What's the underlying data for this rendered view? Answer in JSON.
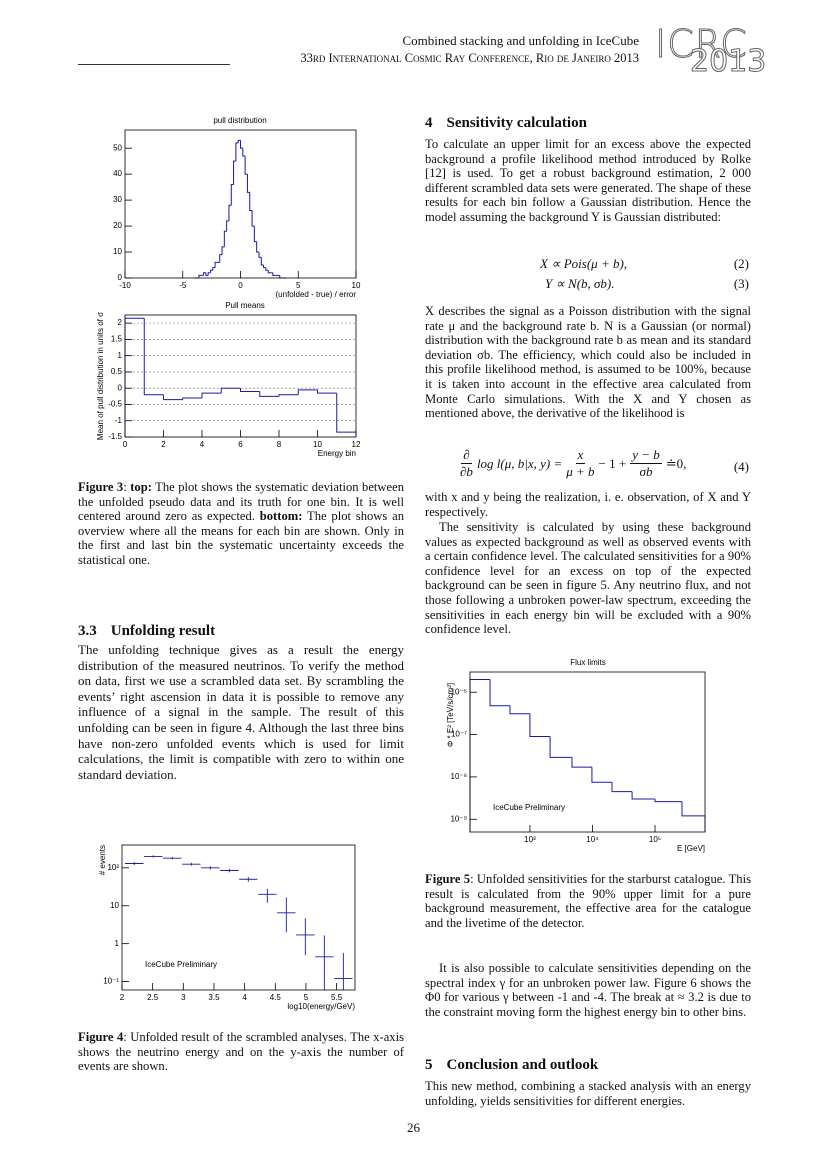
{
  "header": {
    "title": "Combined stacking and unfolding in IceCube",
    "conference": "33rd International Cosmic Ray Conference, Rio de Janeiro 2013",
    "logo_top": "ICRC",
    "logo_bottom": "2013"
  },
  "figures": {
    "pull": {
      "type": "histogram",
      "title": "pull distribution",
      "xlabel": "(unfolded - true) / error",
      "color": "#1a1aa8",
      "bins": [
        -4,
        -3.8,
        -3.6,
        -3.4,
        -3.2,
        -3,
        -2.8,
        -2.6,
        -2.4,
        -2.2,
        -2,
        -1.8,
        -1.6,
        -1.4,
        -1.2,
        -1,
        -0.8,
        -0.6,
        -0.4,
        -0.2,
        0,
        0.2,
        0.4,
        0.6,
        0.8,
        1,
        1.2,
        1.4,
        1.6,
        1.8,
        2,
        2.2,
        2.4,
        2.6,
        2.8,
        3,
        3.2,
        3.4,
        3.6,
        3.8,
        4
      ],
      "values": [
        0,
        0,
        1,
        1,
        2,
        1,
        2,
        3,
        4,
        6,
        6,
        9,
        12,
        18,
        22,
        28,
        36,
        45,
        52,
        53,
        50,
        47,
        40,
        33,
        26,
        20,
        14,
        10,
        8,
        5,
        4,
        3,
        2,
        2,
        1,
        1,
        1,
        0,
        0,
        0
      ],
      "xlim": [
        -10,
        10
      ],
      "xticks": [
        -10,
        -5,
        0,
        5,
        10
      ],
      "ylim": [
        0,
        57
      ],
      "yticks": [
        0,
        10,
        20,
        30,
        40,
        50
      ]
    },
    "means": {
      "type": "histogram",
      "title": "Pull means",
      "xlabel": "Energy bin",
      "ylabel": "Mean of pull distribution in units of σ",
      "color": "#1a1aa8",
      "grid": true,
      "bins": [
        0,
        1,
        2,
        3,
        4,
        5,
        6,
        7,
        8,
        9,
        10,
        11,
        12
      ],
      "values": [
        2.15,
        -0.2,
        -0.35,
        -0.3,
        -0.15,
        0,
        -0.1,
        -0.25,
        -0.2,
        -0.05,
        -0.15,
        -1.35
      ],
      "xlim": [
        0,
        12
      ],
      "xticks": [
        0,
        2,
        4,
        6,
        8,
        10,
        12
      ],
      "ylim": [
        -1.5,
        2.25
      ],
      "yticks": [
        -1.5,
        -1,
        -0.5,
        0,
        0.5,
        1,
        1.5,
        2
      ]
    },
    "unfolded": {
      "type": "errorbar",
      "xlabel": "log10(energy/GeV)",
      "ylabel": "# events",
      "annotation": "IceCube Preliminary",
      "color": "#1a1aa8",
      "ylog": true,
      "x": [
        2.2,
        2.51,
        2.82,
        3.13,
        3.44,
        3.75,
        4.06,
        4.37,
        4.68,
        4.99,
        5.3,
        5.61
      ],
      "xerr": 0.15,
      "values": [
        130,
        200,
        180,
        125,
        100,
        85,
        50,
        20,
        6.5,
        1.7,
        0.45,
        0.12
      ],
      "err_low": [
        12,
        14,
        13,
        11,
        10,
        9,
        7,
        8,
        4.5,
        1.2,
        0.4,
        0.12
      ],
      "err_high": [
        12,
        14,
        13,
        11,
        10,
        9,
        7,
        8,
        10,
        3,
        1.2,
        0.45
      ],
      "xlim": [
        2,
        5.8
      ],
      "xticks": [
        2,
        2.5,
        3,
        3.5,
        4,
        4.5,
        5,
        5.5
      ],
      "ylim": [
        0.06,
        400
      ],
      "yticks": [
        {
          "value": 0.1,
          "label": "10⁻¹"
        },
        {
          "value": 1,
          "label": "1"
        },
        {
          "value": 10,
          "label": "10"
        },
        {
          "value": 100,
          "label": "10²"
        }
      ]
    },
    "flux": {
      "type": "histogram",
      "title": "Flux limits",
      "xlabel": "E [GeV]",
      "ylabel": "Φ * E² [TeV/s/cm²]",
      "annotation": "IceCube Preliminary",
      "color": "#1a1aa8",
      "xlog": true,
      "ylog": true,
      "bins": [
        110,
        230,
        480,
        1000,
        2100,
        4700,
        9800,
        20500,
        43000,
        100000,
        270000,
        630000
      ],
      "values": [
        2e-06,
        4.8e-07,
        3.1e-07,
        9e-08,
        2.9e-08,
        1.7e-08,
        7.5e-09,
        4.5e-09,
        3e-09,
        2.6e-09,
        1.2e-09
      ],
      "xlim": [
        110,
        630000
      ],
      "xticks": [
        {
          "value": 1000,
          "label": "10³"
        },
        {
          "value": 10000,
          "label": "10⁴"
        },
        {
          "value": 100000,
          "label": "10⁵"
        }
      ],
      "ylim": [
        5e-10,
        3e-06
      ],
      "yticks": [
        {
          "value": 1e-09,
          "label": "10⁻⁹"
        },
        {
          "value": 1e-08,
          "label": "10⁻⁸"
        },
        {
          "value": 1e-07,
          "label": "10⁻⁷"
        },
        {
          "value": 1e-06,
          "label": "10⁻⁶"
        }
      ]
    }
  },
  "left": {
    "caption3": [
      "Figure 3",
      ": ",
      "top:",
      " The plot shows the systematic deviation between the unfolded pseudo data and its truth for one bin. It is well centered around zero as expected. ",
      "bottom:",
      " The plot shows an overview where all the means for each bin are shown. Only in the first and last bin the systematic uncertainty exceeds the statistical one."
    ],
    "section": {
      "number": "3.3",
      "title": "Unfolding result"
    },
    "paragraph": "The unfolding technique gives as a result the energy distribution of the measured neutrinos. To verify the method on data, first we use a scrambled data set. By scrambling the events’ right ascension in data it is possible to remove any influence of a signal in the sample. The result of this unfolding can be seen in figure 4. Although the last three bins have non-zero unfolded events which is used for limit calculations, the limit is compatible with zero to within one standard deviation.",
    "caption4": [
      "Figure 4",
      ": Unfolded result of the scrambled analyses. The x-axis shows the neutrino energy and on the y-axis the number of events are shown."
    ]
  },
  "right": {
    "section4": {
      "number": "4",
      "title": "Sensitivity calculation"
    },
    "p1": "To calculate an upper limit for an excess above the expected background a profile likelihood method introduced by Rolke [12] is used. To get a robust background estimation, 2 000 different scrambled data sets were generated. The shape of these results for each bin follow a Gaussian distribution. Hence the model assuming the background Y is Gaussian distributed:",
    "eq2": {
      "text": "X ∝ Pois(μ + b),",
      "number": "(2)"
    },
    "eq3": {
      "text": "Y ∝ N(b, σb).",
      "number": "(3)"
    },
    "p2": "X describes the signal as a Poisson distribution with the signal rate μ and the background rate b. N is a Gaussian (or normal) distribution with the background rate b as mean and its standard deviation σb. The efficiency, which could also be included in this profile likelihood method, is assumed to be 100%, because it is taken into account in the effective area calculated from Monte Carlo simulations. With the X and Y chosen as mentioned above, the derivative of the likelihood is",
    "eq4": {
      "d_num": "∂",
      "d_den": "∂b",
      "lhs": "log l(μ, b|x, y) =",
      "f1_num": "x",
      "f1_den": "μ + b",
      "mid": "− 1 +",
      "f2_num": "y − b",
      "f2_den": "σb",
      "end": "≐0,",
      "number": "(4)"
    },
    "p3": "with x and y being the realization, i. e. observation, of X and Y respectively.",
    "p4": "The sensitivity is calculated by using these background values as expected background as well as observed events with a certain confidence level. The calculated sensitivities for a 90% confidence level for an excess on top of the expected background can be seen in figure 5. Any neutrino flux, and not those following a unbroken power-law spectrum, exceeding the sensitivities in each energy bin will be excluded with a 90% confidence level.",
    "caption5": [
      "Figure 5",
      ": Unfolded sensitivities for the starburst catalogue. This result is calculated from the 90% upper limit for a pure background measurement, the effective area for the catalogue and the livetime of the detector."
    ],
    "p5": "It is also possible to calculate sensitivities depending on the spectral index γ for an unbroken power law. Figure 6 shows the Φ0 for various γ between -1 and -4. The break at ≈ 3.2 is due to the constraint moving form the highest energy bin to other bins.",
    "section5": {
      "number": "5",
      "title": "Conclusion and outlook"
    },
    "p6": "This new method, combining a stacked analysis with an energy unfolding, yields sensitivities for different energies."
  },
  "page_number": "26"
}
